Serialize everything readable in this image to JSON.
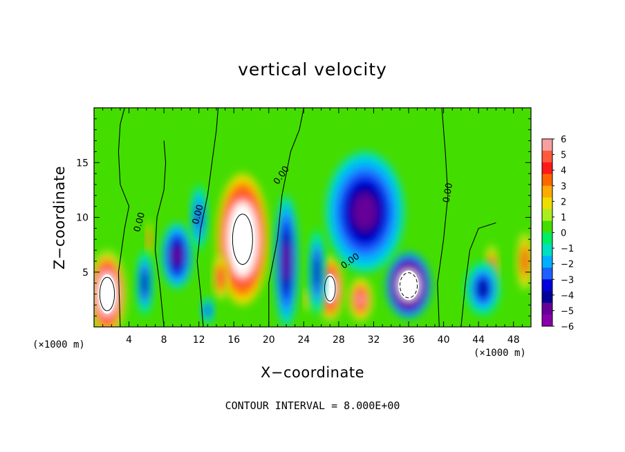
{
  "chart_data": {
    "type": "heatmap",
    "title": "vertical velocity",
    "xlabel": "X−coordinate",
    "ylabel": "Z−coordinate",
    "x_unit": "(×1000 m)",
    "footer": "CONTOUR INTERVAL = 8.000E+00",
    "xlim": [
      0,
      50
    ],
    "ylim": [
      0,
      20
    ],
    "x_ticks": [
      4,
      8,
      12,
      16,
      20,
      24,
      28,
      32,
      36,
      40,
      44,
      48
    ],
    "x_tick_labels": [
      "4",
      "8",
      "12",
      "16",
      "20",
      "24",
      "28",
      "32",
      "36",
      "40",
      "44",
      "48"
    ],
    "y_ticks": [
      5,
      10,
      15
    ],
    "y_tick_labels": [
      "5",
      "10",
      "15"
    ],
    "colorbar": {
      "min": -6,
      "max": 6,
      "labels": [
        "6",
        "5",
        "4",
        "3",
        "2",
        "1",
        "0",
        "−1",
        "−2",
        "−3",
        "−4",
        "−5",
        "−6"
      ],
      "colors": [
        "#f6a0a0",
        "#ff5a3c",
        "#ff1a1a",
        "#ff6600",
        "#ffaa00",
        "#eedd00",
        "#aaee22",
        "#44dd00",
        "#00ee66",
        "#00e0c0",
        "#00b0ff",
        "#1e60ff",
        "#0000dd",
        "#000099",
        "#660099",
        "#8800aa"
      ]
    },
    "contour_labels": [
      "0.00",
      "0.00",
      "0.00",
      "0.00",
      "0.00"
    ],
    "features": [
      {
        "x": 1.5,
        "z": 3.0,
        "value": 9,
        "rx": 2.2,
        "rz": 4.0
      },
      {
        "x": 17.0,
        "z": 8.0,
        "value": 10,
        "rx": 3.0,
        "rz": 6.0
      },
      {
        "x": 27.0,
        "z": 3.5,
        "value": 7,
        "rx": 1.6,
        "rz": 3.0
      },
      {
        "x": 30.5,
        "z": 2.5,
        "value": 6,
        "rx": 1.4,
        "rz": 2.0
      },
      {
        "x": 14.5,
        "z": 4.5,
        "value": 5,
        "rx": 0.9,
        "rz": 2.0
      },
      {
        "x": 45.5,
        "z": 5.0,
        "value": 6,
        "rx": 0.8,
        "rz": 2.5
      },
      {
        "x": 49.3,
        "z": 6.0,
        "value": 4,
        "rx": 1.0,
        "rz": 3.0
      },
      {
        "x": 6.3,
        "z": 8.0,
        "value": 4,
        "rx": 0.4,
        "rz": 1.8
      },
      {
        "x": 24.5,
        "z": 2.5,
        "value": 3,
        "rx": 0.5,
        "rz": 1.2
      },
      {
        "x": 36.0,
        "z": 3.8,
        "value": -9,
        "rx": 2.6,
        "rz": 3.0
      },
      {
        "x": 31.0,
        "z": 10.5,
        "value": -5,
        "rx": 4.5,
        "rz": 5.5
      },
      {
        "x": 22.0,
        "z": 6.0,
        "value": -5,
        "rx": 1.4,
        "rz": 6.0
      },
      {
        "x": 25.5,
        "z": 5.0,
        "value": -4,
        "rx": 1.0,
        "rz": 4.0
      },
      {
        "x": 9.5,
        "z": 6.5,
        "value": -5,
        "rx": 1.8,
        "rz": 3.0
      },
      {
        "x": 5.8,
        "z": 4.0,
        "value": -4,
        "rx": 1.0,
        "rz": 3.0
      },
      {
        "x": 44.5,
        "z": 3.5,
        "value": -4,
        "rx": 2.0,
        "rz": 2.5
      },
      {
        "x": 12.0,
        "z": 10.0,
        "value": -3,
        "rx": 1.0,
        "rz": 3.0
      },
      {
        "x": 13.0,
        "z": 1.5,
        "value": -3,
        "rx": 0.8,
        "rz": 1.2
      }
    ]
  }
}
